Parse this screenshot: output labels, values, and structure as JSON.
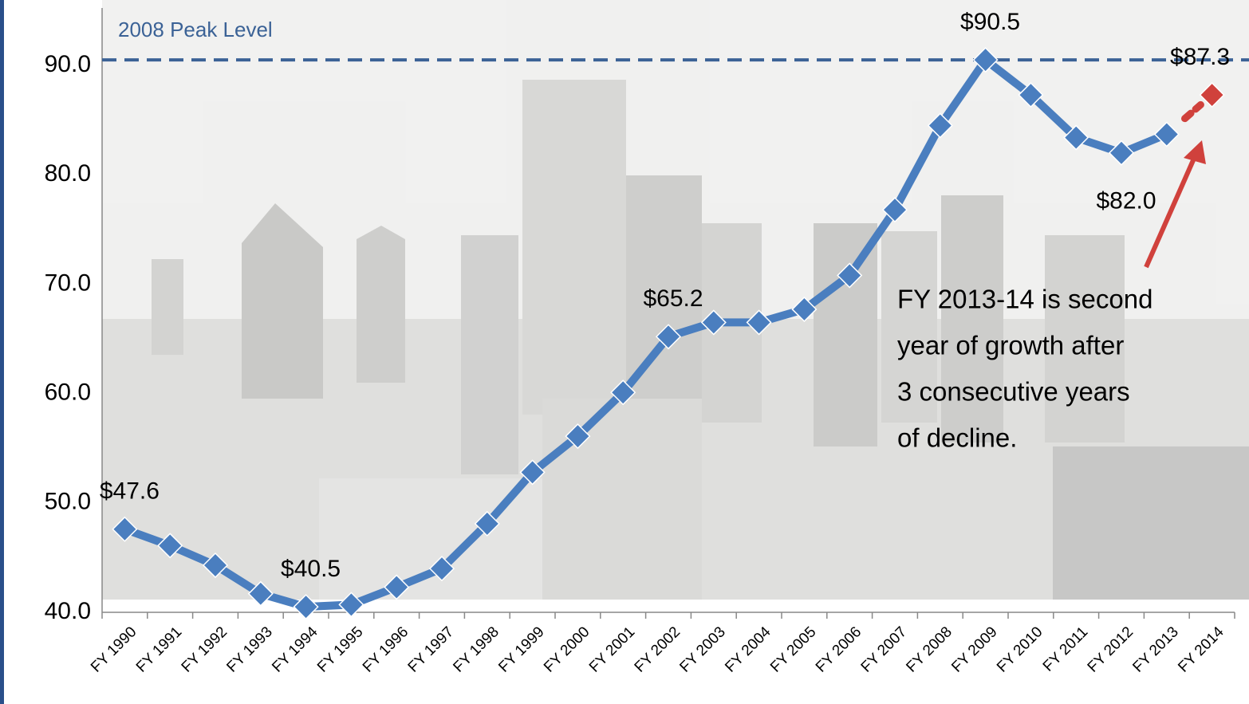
{
  "chart_data": {
    "type": "line",
    "categories": [
      "FY 1990",
      "FY 1991",
      "FY 1992",
      "FY 1993",
      "FY 1994",
      "FY 1995",
      "FY 1996",
      "FY 1997",
      "FY 1998",
      "FY 1999",
      "FY 2000",
      "FY 2001",
      "FY 2002",
      "FY 2003",
      "FY 2004",
      "FY 2005",
      "FY 2006",
      "FY 2007",
      "FY 2008",
      "FY 2009",
      "FY 2010",
      "FY 2011",
      "FY 2012",
      "FY 2013",
      "FY 2014"
    ],
    "series": [
      {
        "color": "#4a7ebf",
        "values": [
          47.6,
          46.1,
          44.3,
          41.7,
          40.5,
          40.7,
          42.3,
          44.0,
          48.1,
          52.8,
          56.1,
          60.1,
          65.2,
          66.5,
          66.5,
          67.7,
          70.8,
          76.8,
          84.5,
          90.5,
          87.3,
          83.4,
          82.0,
          83.7,
          null
        ],
        "value_labels": [
          "$47.6",
          null,
          null,
          null,
          "$40.5",
          null,
          null,
          null,
          null,
          null,
          null,
          null,
          "$65.2",
          null,
          null,
          null,
          null,
          null,
          null,
          "$90.5",
          null,
          null,
          "$82.0",
          null,
          null
        ]
      },
      {
        "color": "#d0413c",
        "values": [
          null,
          null,
          null,
          null,
          null,
          null,
          null,
          null,
          null,
          null,
          null,
          null,
          null,
          null,
          null,
          null,
          null,
          null,
          null,
          null,
          null,
          null,
          null,
          null,
          87.3
        ],
        "value_labels": [
          null,
          null,
          null,
          null,
          null,
          null,
          null,
          null,
          null,
          null,
          null,
          null,
          null,
          null,
          null,
          null,
          null,
          null,
          null,
          null,
          null,
          null,
          null,
          null,
          "$87.3"
        ]
      }
    ],
    "reference_line": {
      "value": 90.5,
      "label": "2008 Peak Level",
      "color": "#3b6296"
    },
    "annotation": [
      "FY 2013-14 is second",
      "year of growth after",
      "3 consecutive years",
      "of decline."
    ],
    "ylim": [
      40,
      95
    ],
    "yticks": [
      {
        "value": 40,
        "label": "40.0"
      },
      {
        "value": 50,
        "label": "50.0"
      },
      {
        "value": 60,
        "label": "60.0"
      },
      {
        "value": 70,
        "label": "70.0"
      },
      {
        "value": 80,
        "label": "80.0"
      },
      {
        "value": 90,
        "label": "90.0"
      }
    ]
  }
}
